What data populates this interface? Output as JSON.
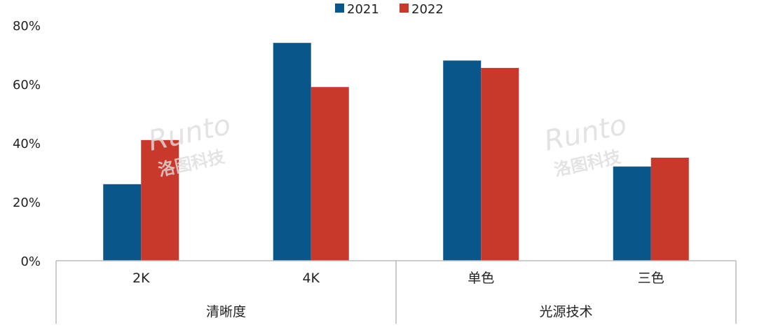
{
  "chart_data": {
    "type": "bar",
    "categories": [
      "2K",
      "4K",
      "单色",
      "三色"
    ],
    "groups": [
      {
        "label": "清晰度",
        "categories": [
          "2K",
          "4K"
        ]
      },
      {
        "label": "光源技术",
        "categories": [
          "单色",
          "三色"
        ]
      }
    ],
    "series": [
      {
        "name": "2021",
        "color": "#08568a",
        "values": [
          26,
          74,
          68,
          32
        ]
      },
      {
        "name": "2022",
        "color": "#c9392b",
        "values": [
          41,
          59,
          65.5,
          35
        ]
      }
    ],
    "ylim": [
      0,
      80
    ],
    "yticks": [
      "0%",
      "20%",
      "40%",
      "60%",
      "80%"
    ],
    "legend_position": "top",
    "grid": false,
    "watermark": "Runto 洛图科技"
  }
}
